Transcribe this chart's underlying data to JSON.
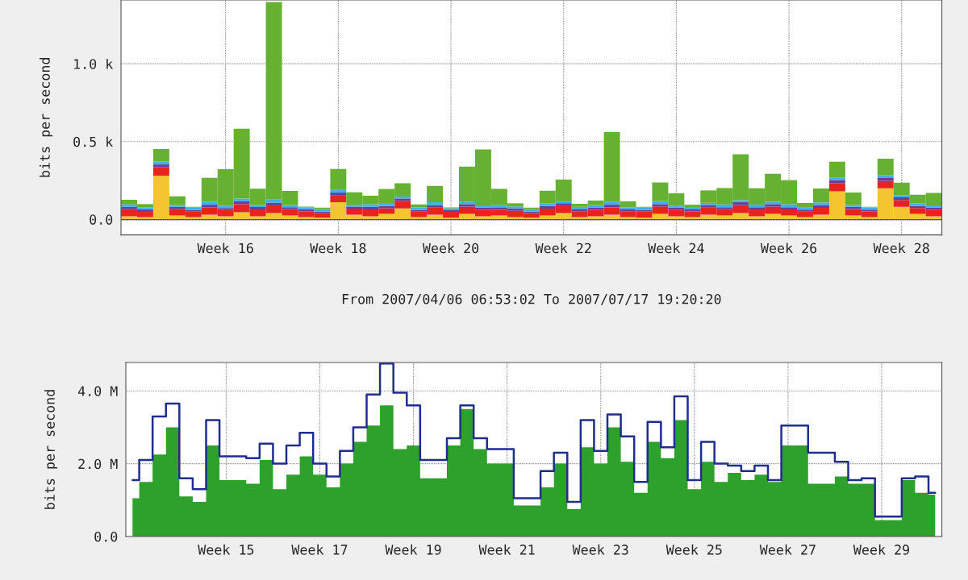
{
  "chart_data": [
    {
      "type": "bar",
      "stacked": true,
      "ylabel": "bits per second",
      "grid": true,
      "categories": [
        null,
        null,
        null,
        null,
        null,
        null,
        "Week 16",
        null,
        null,
        null,
        null,
        null,
        null,
        "Week 18",
        null,
        null,
        null,
        null,
        null,
        null,
        "Week 20",
        null,
        null,
        null,
        null,
        null,
        null,
        "Week 22",
        null,
        null,
        null,
        null,
        null,
        null,
        "Week 24",
        null,
        null,
        null,
        null,
        null,
        null,
        "Week 26",
        null,
        null,
        null,
        null,
        null,
        null,
        "Week 28",
        null,
        null
      ],
      "ylim": [
        -100,
        1410
      ],
      "yticks": [
        {
          "value": 0,
          "label": "0.0"
        },
        {
          "value": 500,
          "label": "0.5 k"
        },
        {
          "value": 1000,
          "label": "1.0 k"
        }
      ],
      "annotations": [
        "From 2007/04/06 06:53:02 To 2007/07/17 19:20:20"
      ],
      "series": [
        {
          "color": "#f5c431",
          "values": [
            20,
            15,
            280,
            25,
            15,
            30,
            20,
            45,
            20,
            40,
            25,
            15,
            10,
            110,
            30,
            20,
            35,
            70,
            15,
            30,
            10,
            35,
            20,
            25,
            15,
            10,
            25,
            40,
            15,
            20,
            30,
            15,
            10,
            35,
            20,
            15,
            30,
            25,
            40,
            20,
            35,
            25,
            15,
            30,
            180,
            25,
            15,
            200,
            80,
            35,
            20
          ]
        },
        {
          "color": "#e8231f",
          "values": [
            45,
            38,
            55,
            42,
            35,
            48,
            40,
            52,
            44,
            50,
            41,
            36,
            30,
            46,
            39,
            43,
            37,
            49,
            34,
            45,
            38,
            47,
            42,
            36,
            40,
            30,
            44,
            50,
            37,
            41,
            46,
            35,
            39,
            48,
            42,
            36,
            45,
            40,
            51,
            43,
            47,
            39,
            35,
            44,
            52,
            41,
            36,
            48,
            45,
            38,
            42
          ]
        },
        {
          "color": "#6a3d9a",
          "values": [
            15,
            12,
            18,
            14,
            10,
            16,
            13,
            19,
            15,
            17,
            12,
            14,
            11,
            16,
            13,
            18,
            14,
            15,
            12,
            17,
            11,
            16,
            14,
            13,
            15,
            10,
            17,
            14,
            12,
            16,
            18,
            13,
            11,
            15,
            14,
            12,
            17,
            13,
            19,
            15,
            16,
            14,
            12,
            18,
            20,
            14,
            11,
            17,
            16,
            13,
            15
          ]
        },
        {
          "color": "#3fb1e6",
          "values": [
            16,
            13,
            19,
            12,
            15,
            18,
            14,
            17,
            13,
            20,
            15,
            12,
            14,
            17,
            12,
            16,
            19,
            13,
            15,
            18,
            12,
            16,
            14,
            17,
            13,
            15,
            18,
            12,
            16,
            14,
            17,
            13,
            15,
            19,
            12,
            16,
            14,
            18,
            13,
            17,
            15,
            19,
            13,
            16,
            18,
            12,
            14,
            20,
            15,
            17,
            13
          ]
        },
        {
          "color": "#66b032",
          "values": [
            30,
            20,
            80,
            55,
            5,
            155,
            235,
            450,
            105,
            1270,
            90,
            5,
            10,
            135,
            80,
            55,
            90,
            85,
            20,
            105,
            5,
            225,
            360,
            105,
            20,
            10,
            80,
            140,
            20,
            30,
            450,
            40,
            5,
            120,
            80,
            15,
            80,
            105,
            295,
            105,
            180,
            155,
            30,
            90,
            100,
            80,
            5,
            105,
            80,
            55,
            80
          ]
        }
      ]
    },
    {
      "type": "area",
      "ylabel": "bits per second",
      "grid": true,
      "categories": [
        null,
        null,
        null,
        null,
        null,
        null,
        null,
        "Week 15",
        null,
        null,
        null,
        null,
        null,
        null,
        "Week 17",
        null,
        null,
        null,
        null,
        null,
        null,
        "Week 19",
        null,
        null,
        null,
        null,
        null,
        null,
        "Week 21",
        null,
        null,
        null,
        null,
        null,
        null,
        "Week 23",
        null,
        null,
        null,
        null,
        null,
        null,
        "Week 25",
        null,
        null,
        null,
        null,
        null,
        null,
        "Week 27",
        null,
        null,
        null,
        null,
        null,
        null,
        "Week 29",
        null,
        null,
        null,
        null
      ],
      "ylim": [
        0,
        4780000
      ],
      "yticks": [
        {
          "value": 0,
          "label": "0.0"
        },
        {
          "value": 2000000,
          "label": "2.0 M"
        },
        {
          "value": 4000000,
          "label": "4.0 M"
        }
      ],
      "series": [
        {
          "type": "area",
          "color": "#2ea02c",
          "values": [
            1050000,
            1500000,
            2250000,
            3000000,
            1100000,
            950000,
            2500000,
            1550000,
            1550000,
            1450000,
            2100000,
            1300000,
            1700000,
            2200000,
            1700000,
            1350000,
            2000000,
            2600000,
            3050000,
            3600000,
            2400000,
            2500000,
            1600000,
            1600000,
            2500000,
            3500000,
            2400000,
            2000000,
            2000000,
            850000,
            850000,
            1350000,
            2000000,
            750000,
            2450000,
            2000000,
            3000000,
            2050000,
            1200000,
            2600000,
            2150000,
            3200000,
            1300000,
            2050000,
            1500000,
            1750000,
            1550000,
            1700000,
            1500000,
            2500000,
            2500000,
            1450000,
            1450000,
            1650000,
            1450000,
            1450000,
            450000,
            450000,
            1550000,
            1200000,
            1150000
          ]
        },
        {
          "type": "step",
          "color": "#1f2d8c",
          "values": [
            1550000,
            2100000,
            3300000,
            3650000,
            1600000,
            1300000,
            3200000,
            2200000,
            2200000,
            2150000,
            2550000,
            2000000,
            2500000,
            2850000,
            2000000,
            1650000,
            2350000,
            3000000,
            3900000,
            4750000,
            3950000,
            3600000,
            2100000,
            2100000,
            2700000,
            3600000,
            2700000,
            2400000,
            2400000,
            1050000,
            1050000,
            1800000,
            2300000,
            950000,
            3200000,
            2350000,
            3350000,
            2750000,
            1500000,
            3150000,
            2450000,
            3850000,
            1550000,
            2600000,
            2000000,
            1950000,
            1800000,
            1950000,
            1550000,
            3050000,
            3050000,
            2300000,
            2300000,
            2050000,
            1550000,
            1600000,
            550000,
            550000,
            1600000,
            1650000,
            1200000
          ]
        }
      ]
    }
  ]
}
